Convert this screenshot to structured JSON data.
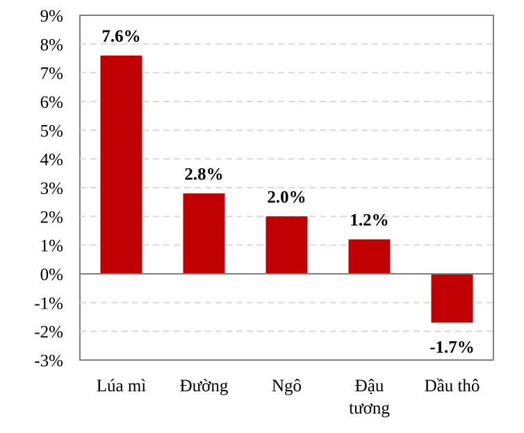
{
  "chart_data": {
    "type": "bar",
    "categories": [
      [
        "Lúa mì"
      ],
      [
        "Đường"
      ],
      [
        "Ngô"
      ],
      [
        "Đậu",
        "tương"
      ],
      [
        "Dầu thô"
      ]
    ],
    "values": [
      7.6,
      2.8,
      2.0,
      1.2,
      -1.7
    ],
    "data_labels": [
      "7.6%",
      "2.8%",
      "2.0%",
      "1.2%",
      "-1.7%"
    ],
    "yticks": [
      9,
      8,
      7,
      6,
      5,
      4,
      3,
      2,
      1,
      0,
      -1,
      -2,
      -3
    ],
    "ytick_labels": [
      "9%",
      "8%",
      "7%",
      "6%",
      "5%",
      "4%",
      "3%",
      "2%",
      "1%",
      "0%",
      "-1%",
      "-2%",
      "-3%"
    ],
    "ylim": [
      -3,
      9
    ],
    "title": "",
    "xlabel": "",
    "ylabel": "",
    "grid": true,
    "legend": "none",
    "bar_color": "#C00000"
  }
}
